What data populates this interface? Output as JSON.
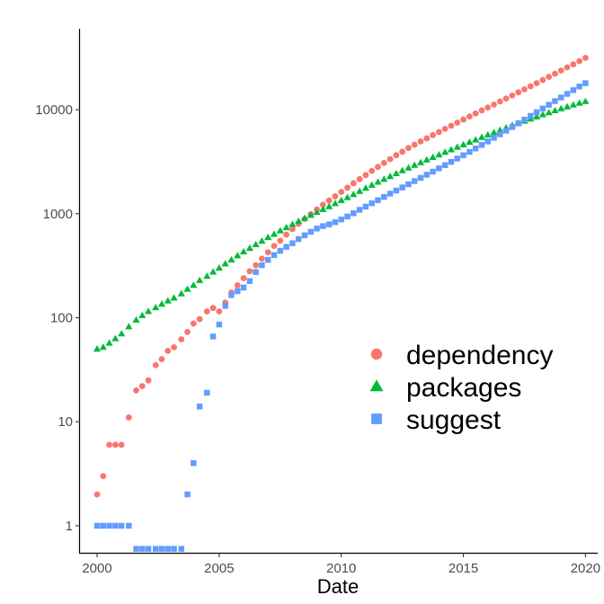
{
  "chart_data": {
    "type": "scatter",
    "title": "",
    "xlabel": "Date",
    "ylabel": "",
    "y_scale": "log",
    "xlim": [
      1999.3,
      2020.5
    ],
    "ylim": [
      0.55,
      60000
    ],
    "x_ticks": [
      2000,
      2005,
      2010,
      2015,
      2020
    ],
    "x_tick_labels": [
      "2000",
      "2005",
      "2010",
      "2015",
      "2020"
    ],
    "y_ticks": [
      1,
      10,
      100,
      1000,
      10000
    ],
    "y_tick_labels": [
      "1",
      "10",
      "100",
      "1000",
      "10000"
    ],
    "grid": false,
    "legend_position": "right, vertically centered in the lower half",
    "series": [
      {
        "name": "dependency",
        "color": "#F8766D",
        "marker": "circle",
        "points": [
          [
            2000.0,
            2
          ],
          [
            2000.25,
            3
          ],
          [
            2000.5,
            6
          ],
          [
            2000.75,
            6
          ],
          [
            2001.0,
            6
          ],
          [
            2001.3,
            11
          ],
          [
            2001.6,
            20
          ],
          [
            2001.85,
            22
          ],
          [
            2002.1,
            25
          ],
          [
            2002.4,
            35
          ],
          [
            2002.65,
            40
          ],
          [
            2002.9,
            48
          ],
          [
            2003.15,
            52
          ],
          [
            2003.45,
            62
          ],
          [
            2003.7,
            73
          ],
          [
            2003.95,
            88
          ],
          [
            2004.2,
            97
          ],
          [
            2004.5,
            115
          ],
          [
            2004.75,
            124
          ],
          [
            2005.0,
            115
          ],
          [
            2005.25,
            140
          ],
          [
            2005.5,
            175
          ],
          [
            2005.75,
            205
          ],
          [
            2006.0,
            240
          ],
          [
            2006.25,
            280
          ],
          [
            2006.5,
            320
          ],
          [
            2006.75,
            370
          ],
          [
            2007.0,
            425
          ],
          [
            2007.25,
            490
          ],
          [
            2007.5,
            550
          ],
          [
            2007.75,
            630
          ],
          [
            2008.0,
            710
          ],
          [
            2008.25,
            800
          ],
          [
            2008.5,
            890
          ],
          [
            2008.75,
            990
          ],
          [
            2009.0,
            1100
          ],
          [
            2009.25,
            1220
          ],
          [
            2009.5,
            1340
          ],
          [
            2009.75,
            1470
          ],
          [
            2010.0,
            1620
          ],
          [
            2010.25,
            1780
          ],
          [
            2010.5,
            1960
          ],
          [
            2010.75,
            2150
          ],
          [
            2011.0,
            2350
          ],
          [
            2011.25,
            2580
          ],
          [
            2011.5,
            2820
          ],
          [
            2011.75,
            3080
          ],
          [
            2012.0,
            3350
          ],
          [
            2012.25,
            3650
          ],
          [
            2012.5,
            3950
          ],
          [
            2012.75,
            4280
          ],
          [
            2013.0,
            4600
          ],
          [
            2013.25,
            4950
          ],
          [
            2013.5,
            5300
          ],
          [
            2013.75,
            5700
          ],
          [
            2014.0,
            6100
          ],
          [
            2014.25,
            6550
          ],
          [
            2014.5,
            7000
          ],
          [
            2014.75,
            7500
          ],
          [
            2015.0,
            8050
          ],
          [
            2015.25,
            8600
          ],
          [
            2015.5,
            9200
          ],
          [
            2015.75,
            9850
          ],
          [
            2016.0,
            10500
          ],
          [
            2016.25,
            11200
          ],
          [
            2016.5,
            12000
          ],
          [
            2016.75,
            12800
          ],
          [
            2017.0,
            13700
          ],
          [
            2017.25,
            14700
          ],
          [
            2017.5,
            15700
          ],
          [
            2017.75,
            16800
          ],
          [
            2018.0,
            18000
          ],
          [
            2018.25,
            19300
          ],
          [
            2018.5,
            20700
          ],
          [
            2018.75,
            22200
          ],
          [
            2019.0,
            23800
          ],
          [
            2019.25,
            25500
          ],
          [
            2019.5,
            27300
          ],
          [
            2019.75,
            29300
          ],
          [
            2020.0,
            31500
          ]
        ]
      },
      {
        "name": "packages",
        "color": "#00BA38",
        "marker": "triangle",
        "points": [
          [
            2000.0,
            50
          ],
          [
            2000.25,
            52
          ],
          [
            2000.5,
            57
          ],
          [
            2000.75,
            63
          ],
          [
            2001.0,
            70
          ],
          [
            2001.3,
            82
          ],
          [
            2001.6,
            95
          ],
          [
            2001.85,
            105
          ],
          [
            2002.1,
            115
          ],
          [
            2002.4,
            125
          ],
          [
            2002.65,
            135
          ],
          [
            2002.9,
            145
          ],
          [
            2003.15,
            155
          ],
          [
            2003.45,
            170
          ],
          [
            2003.7,
            188
          ],
          [
            2003.95,
            205
          ],
          [
            2004.2,
            228
          ],
          [
            2004.5,
            250
          ],
          [
            2004.75,
            275
          ],
          [
            2005.0,
            300
          ],
          [
            2005.25,
            330
          ],
          [
            2005.5,
            360
          ],
          [
            2005.75,
            395
          ],
          [
            2006.0,
            430
          ],
          [
            2006.25,
            465
          ],
          [
            2006.5,
            505
          ],
          [
            2006.75,
            545
          ],
          [
            2007.0,
            590
          ],
          [
            2007.25,
            635
          ],
          [
            2007.5,
            685
          ],
          [
            2007.75,
            735
          ],
          [
            2008.0,
            790
          ],
          [
            2008.25,
            845
          ],
          [
            2008.5,
            905
          ],
          [
            2008.75,
            965
          ],
          [
            2009.0,
            1030
          ],
          [
            2009.25,
            1100
          ],
          [
            2009.5,
            1170
          ],
          [
            2009.75,
            1250
          ],
          [
            2010.0,
            1340
          ],
          [
            2010.25,
            1430
          ],
          [
            2010.5,
            1530
          ],
          [
            2010.75,
            1640
          ],
          [
            2011.0,
            1760
          ],
          [
            2011.25,
            1880
          ],
          [
            2011.5,
            2010
          ],
          [
            2011.75,
            2140
          ],
          [
            2012.0,
            2280
          ],
          [
            2012.25,
            2430
          ],
          [
            2012.5,
            2590
          ],
          [
            2012.75,
            2750
          ],
          [
            2013.0,
            2920
          ],
          [
            2013.25,
            3100
          ],
          [
            2013.5,
            3290
          ],
          [
            2013.75,
            3480
          ],
          [
            2014.0,
            3680
          ],
          [
            2014.25,
            3900
          ],
          [
            2014.5,
            4120
          ],
          [
            2014.75,
            4360
          ],
          [
            2015.0,
            4600
          ],
          [
            2015.25,
            4860
          ],
          [
            2015.5,
            5130
          ],
          [
            2015.75,
            5420
          ],
          [
            2016.0,
            5720
          ],
          [
            2016.25,
            6030
          ],
          [
            2016.5,
            6350
          ],
          [
            2016.75,
            6690
          ],
          [
            2017.0,
            7040
          ],
          [
            2017.25,
            7400
          ],
          [
            2017.5,
            7770
          ],
          [
            2017.75,
            8150
          ],
          [
            2018.0,
            8540
          ],
          [
            2018.25,
            8940
          ],
          [
            2018.5,
            9350
          ],
          [
            2018.75,
            9780
          ],
          [
            2019.0,
            10200
          ],
          [
            2019.25,
            10650
          ],
          [
            2019.5,
            11100
          ],
          [
            2019.75,
            11550
          ],
          [
            2020.0,
            12000
          ]
        ]
      },
      {
        "name": "suggest",
        "color": "#619CFF",
        "marker": "square",
        "points": [
          [
            2000.0,
            1
          ],
          [
            2000.25,
            1
          ],
          [
            2000.5,
            1
          ],
          [
            2000.75,
            1
          ],
          [
            2001.0,
            1
          ],
          [
            2001.3,
            1
          ],
          [
            2001.6,
            0.6
          ],
          [
            2001.85,
            0.6
          ],
          [
            2002.1,
            0.6
          ],
          [
            2002.4,
            0.6
          ],
          [
            2002.65,
            0.6
          ],
          [
            2002.9,
            0.6
          ],
          [
            2003.15,
            0.6
          ],
          [
            2003.45,
            0.6
          ],
          [
            2003.7,
            2
          ],
          [
            2003.95,
            4
          ],
          [
            2004.2,
            14
          ],
          [
            2004.5,
            19
          ],
          [
            2004.75,
            66
          ],
          [
            2005.0,
            86
          ],
          [
            2005.25,
            130
          ],
          [
            2005.5,
            165
          ],
          [
            2005.75,
            180
          ],
          [
            2006.0,
            195
          ],
          [
            2006.25,
            225
          ],
          [
            2006.5,
            275
          ],
          [
            2006.75,
            320
          ],
          [
            2007.0,
            360
          ],
          [
            2007.25,
            400
          ],
          [
            2007.5,
            440
          ],
          [
            2007.75,
            480
          ],
          [
            2008.0,
            520
          ],
          [
            2008.25,
            570
          ],
          [
            2008.5,
            620
          ],
          [
            2008.75,
            670
          ],
          [
            2009.0,
            720
          ],
          [
            2009.25,
            760
          ],
          [
            2009.5,
            790
          ],
          [
            2009.75,
            830
          ],
          [
            2010.0,
            880
          ],
          [
            2010.25,
            940
          ],
          [
            2010.5,
            1010
          ],
          [
            2010.75,
            1090
          ],
          [
            2011.0,
            1170
          ],
          [
            2011.25,
            1260
          ],
          [
            2011.5,
            1350
          ],
          [
            2011.75,
            1450
          ],
          [
            2012.0,
            1560
          ],
          [
            2012.25,
            1670
          ],
          [
            2012.5,
            1790
          ],
          [
            2012.75,
            1920
          ],
          [
            2013.0,
            2060
          ],
          [
            2013.25,
            2210
          ],
          [
            2013.5,
            2370
          ],
          [
            2013.75,
            2540
          ],
          [
            2014.0,
            2730
          ],
          [
            2014.25,
            2930
          ],
          [
            2014.5,
            3150
          ],
          [
            2014.75,
            3390
          ],
          [
            2015.0,
            3650
          ],
          [
            2015.25,
            3930
          ],
          [
            2015.5,
            4240
          ],
          [
            2015.75,
            4580
          ],
          [
            2016.0,
            4950
          ],
          [
            2016.25,
            5360
          ],
          [
            2016.5,
            5800
          ],
          [
            2016.75,
            6290
          ],
          [
            2017.0,
            6820
          ],
          [
            2017.25,
            7400
          ],
          [
            2017.5,
            8030
          ],
          [
            2017.75,
            8720
          ],
          [
            2018.0,
            9460
          ],
          [
            2018.25,
            10270
          ],
          [
            2018.5,
            11150
          ],
          [
            2018.75,
            12100
          ],
          [
            2019.0,
            13100
          ],
          [
            2019.25,
            14200
          ],
          [
            2019.5,
            15400
          ],
          [
            2019.75,
            16700
          ],
          [
            2020.0,
            18000
          ]
        ]
      }
    ]
  }
}
